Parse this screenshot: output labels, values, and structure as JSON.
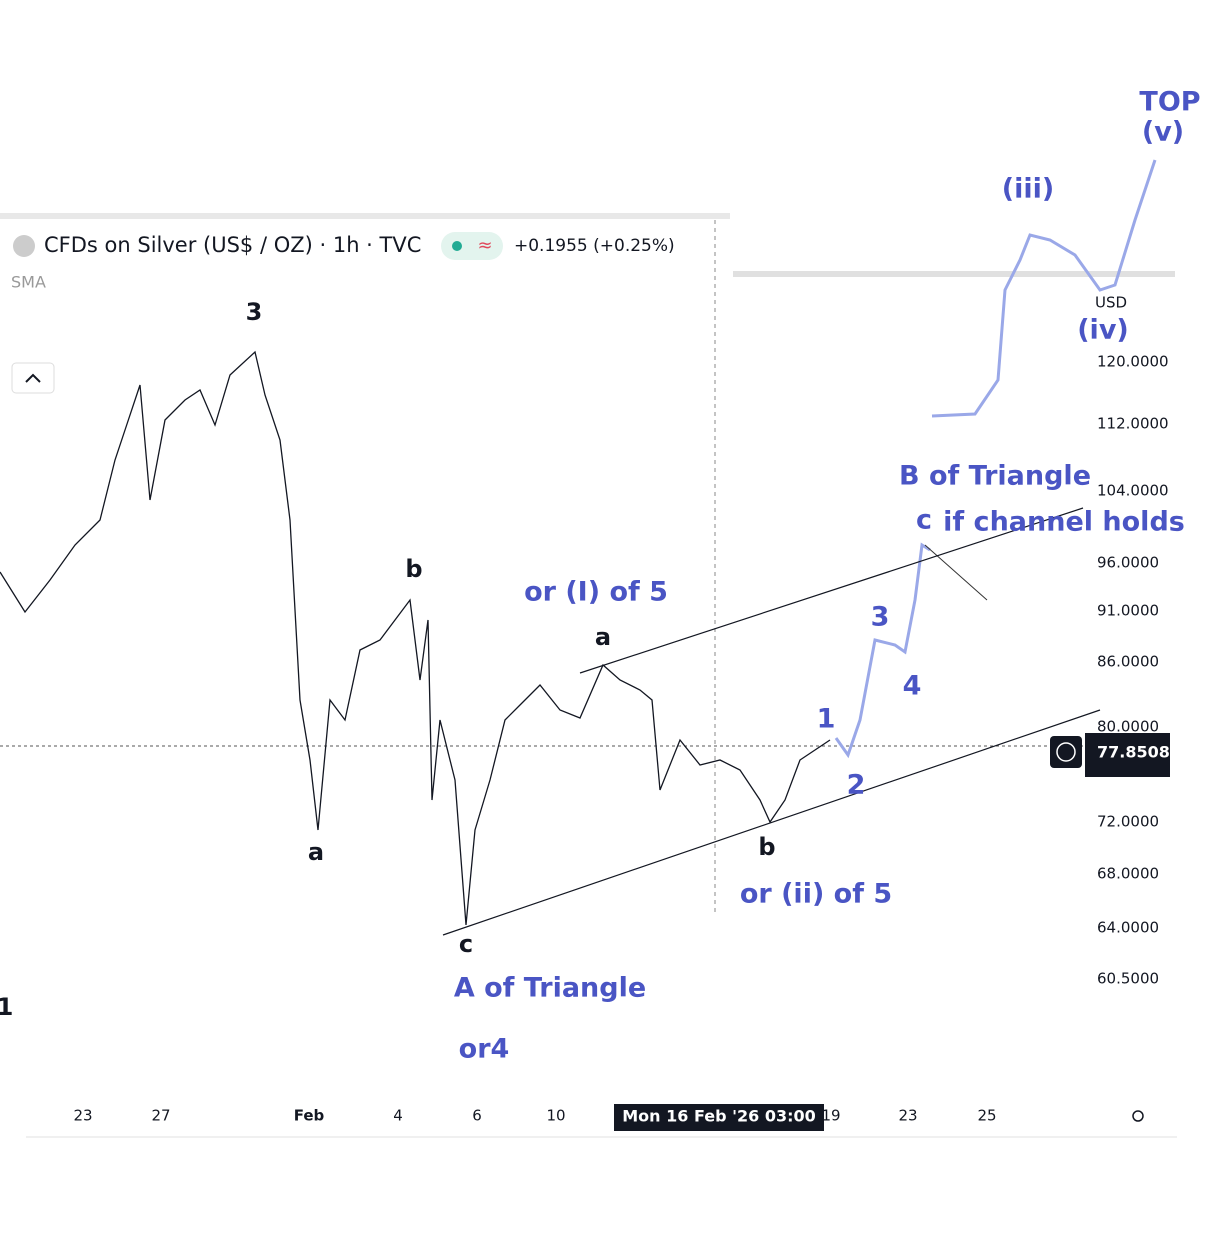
{
  "header": {
    "title": "CFDs on Silver (US$ / OZ) · 1h · TVC",
    "change": "+0.1955 (+0.25%)",
    "indicator": "SMA"
  },
  "price_axis": {
    "currency": "USD",
    "labels": [
      "120.0000",
      "112.0000",
      "104.0000",
      "96.0000",
      "91.0000",
      "86.0000",
      "80.0000",
      "72.0000",
      "68.0000",
      "64.0000",
      "60.5000"
    ],
    "current": "77.8508"
  },
  "time_axis": {
    "labels": [
      "23",
      "27",
      "Feb",
      "4",
      "6",
      "10",
      "19",
      "23",
      "25"
    ],
    "crosshair": "Mon 16 Feb '26   03:00"
  },
  "annotations": {
    "black": [
      "3",
      "a",
      "b",
      "a",
      "c",
      "b",
      "1"
    ],
    "blue": [
      "or (I) of 5",
      "A of Triangle",
      "or4",
      "or (ii) of 5",
      "1",
      "2",
      "3",
      "4",
      "B of Triangle",
      "c",
      "if channel holds",
      "(iii)",
      "(iv)",
      "TOP",
      "(v)"
    ]
  }
}
